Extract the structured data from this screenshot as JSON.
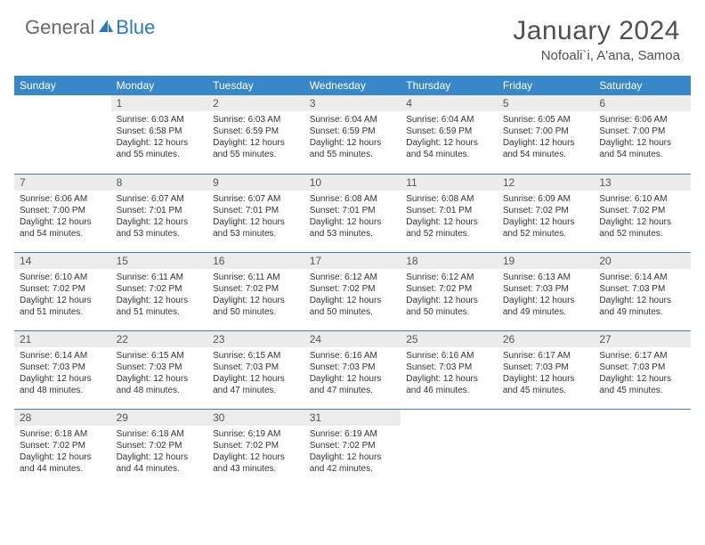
{
  "logo": {
    "text_left": "General",
    "text_right": "Blue",
    "sail_color": "#2a7bbf",
    "gray_color": "#6a6a6a"
  },
  "title": "January 2024",
  "location": "Nofoali`i, A'ana, Samoa",
  "header_row_color": "#3a87c7",
  "divider_color": "#4a7da8",
  "daynum_bg": "#ececec",
  "weekdays": [
    "Sunday",
    "Monday",
    "Tuesday",
    "Wednesday",
    "Thursday",
    "Friday",
    "Saturday"
  ],
  "weeks": [
    [
      {
        "n": "",
        "sr": "",
        "ss": "",
        "dl": ""
      },
      {
        "n": "1",
        "sr": "6:03 AM",
        "ss": "6:58 PM",
        "dl": "12 hours and 55 minutes."
      },
      {
        "n": "2",
        "sr": "6:03 AM",
        "ss": "6:59 PM",
        "dl": "12 hours and 55 minutes."
      },
      {
        "n": "3",
        "sr": "6:04 AM",
        "ss": "6:59 PM",
        "dl": "12 hours and 55 minutes."
      },
      {
        "n": "4",
        "sr": "6:04 AM",
        "ss": "6:59 PM",
        "dl": "12 hours and 54 minutes."
      },
      {
        "n": "5",
        "sr": "6:05 AM",
        "ss": "7:00 PM",
        "dl": "12 hours and 54 minutes."
      },
      {
        "n": "6",
        "sr": "6:06 AM",
        "ss": "7:00 PM",
        "dl": "12 hours and 54 minutes."
      }
    ],
    [
      {
        "n": "7",
        "sr": "6:06 AM",
        "ss": "7:00 PM",
        "dl": "12 hours and 54 minutes."
      },
      {
        "n": "8",
        "sr": "6:07 AM",
        "ss": "7:01 PM",
        "dl": "12 hours and 53 minutes."
      },
      {
        "n": "9",
        "sr": "6:07 AM",
        "ss": "7:01 PM",
        "dl": "12 hours and 53 minutes."
      },
      {
        "n": "10",
        "sr": "6:08 AM",
        "ss": "7:01 PM",
        "dl": "12 hours and 53 minutes."
      },
      {
        "n": "11",
        "sr": "6:08 AM",
        "ss": "7:01 PM",
        "dl": "12 hours and 52 minutes."
      },
      {
        "n": "12",
        "sr": "6:09 AM",
        "ss": "7:02 PM",
        "dl": "12 hours and 52 minutes."
      },
      {
        "n": "13",
        "sr": "6:10 AM",
        "ss": "7:02 PM",
        "dl": "12 hours and 52 minutes."
      }
    ],
    [
      {
        "n": "14",
        "sr": "6:10 AM",
        "ss": "7:02 PM",
        "dl": "12 hours and 51 minutes."
      },
      {
        "n": "15",
        "sr": "6:11 AM",
        "ss": "7:02 PM",
        "dl": "12 hours and 51 minutes."
      },
      {
        "n": "16",
        "sr": "6:11 AM",
        "ss": "7:02 PM",
        "dl": "12 hours and 50 minutes."
      },
      {
        "n": "17",
        "sr": "6:12 AM",
        "ss": "7:02 PM",
        "dl": "12 hours and 50 minutes."
      },
      {
        "n": "18",
        "sr": "6:12 AM",
        "ss": "7:02 PM",
        "dl": "12 hours and 50 minutes."
      },
      {
        "n": "19",
        "sr": "6:13 AM",
        "ss": "7:03 PM",
        "dl": "12 hours and 49 minutes."
      },
      {
        "n": "20",
        "sr": "6:14 AM",
        "ss": "7:03 PM",
        "dl": "12 hours and 49 minutes."
      }
    ],
    [
      {
        "n": "21",
        "sr": "6:14 AM",
        "ss": "7:03 PM",
        "dl": "12 hours and 48 minutes."
      },
      {
        "n": "22",
        "sr": "6:15 AM",
        "ss": "7:03 PM",
        "dl": "12 hours and 48 minutes."
      },
      {
        "n": "23",
        "sr": "6:15 AM",
        "ss": "7:03 PM",
        "dl": "12 hours and 47 minutes."
      },
      {
        "n": "24",
        "sr": "6:16 AM",
        "ss": "7:03 PM",
        "dl": "12 hours and 47 minutes."
      },
      {
        "n": "25",
        "sr": "6:16 AM",
        "ss": "7:03 PM",
        "dl": "12 hours and 46 minutes."
      },
      {
        "n": "26",
        "sr": "6:17 AM",
        "ss": "7:03 PM",
        "dl": "12 hours and 45 minutes."
      },
      {
        "n": "27",
        "sr": "6:17 AM",
        "ss": "7:03 PM",
        "dl": "12 hours and 45 minutes."
      }
    ],
    [
      {
        "n": "28",
        "sr": "6:18 AM",
        "ss": "7:02 PM",
        "dl": "12 hours and 44 minutes."
      },
      {
        "n": "29",
        "sr": "6:18 AM",
        "ss": "7:02 PM",
        "dl": "12 hours and 44 minutes."
      },
      {
        "n": "30",
        "sr": "6:19 AM",
        "ss": "7:02 PM",
        "dl": "12 hours and 43 minutes."
      },
      {
        "n": "31",
        "sr": "6:19 AM",
        "ss": "7:02 PM",
        "dl": "12 hours and 42 minutes."
      },
      {
        "n": "",
        "sr": "",
        "ss": "",
        "dl": ""
      },
      {
        "n": "",
        "sr": "",
        "ss": "",
        "dl": ""
      },
      {
        "n": "",
        "sr": "",
        "ss": "",
        "dl": ""
      }
    ]
  ],
  "labels": {
    "sunrise": "Sunrise:",
    "sunset": "Sunset:",
    "daylight": "Daylight:"
  }
}
